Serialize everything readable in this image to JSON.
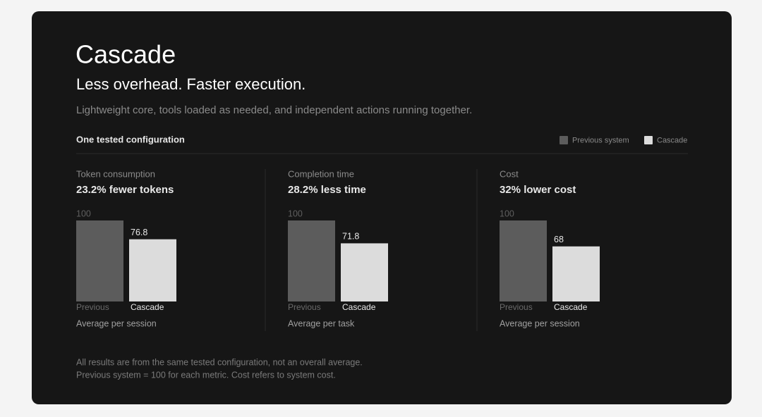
{
  "title": "Cascade",
  "subtitle": "Less overhead. Faster execution.",
  "description": "Lightweight core, tools loaded as needed, and independent actions running together.",
  "section_label": "One tested configuration",
  "legend": [
    {
      "name": "Previous system",
      "color": "#5c5c5c"
    },
    {
      "name": "Cascade",
      "color": "#dcdcdc"
    }
  ],
  "chart_data": [
    {
      "type": "bar",
      "title": "Token consumption",
      "subtitle": "23.2% fewer tokens",
      "categories": [
        "Previous",
        "Cascade"
      ],
      "values": [
        100,
        76.8
      ],
      "colors": [
        "#5c5c5c",
        "#dcdcdc"
      ],
      "ylim": [
        0,
        100
      ],
      "note": "Average per session"
    },
    {
      "type": "bar",
      "title": "Completion time",
      "subtitle": "28.2% less time",
      "categories": [
        "Previous",
        "Cascade"
      ],
      "values": [
        100,
        71.8
      ],
      "colors": [
        "#5c5c5c",
        "#dcdcdc"
      ],
      "ylim": [
        0,
        100
      ],
      "note": "Average per task"
    },
    {
      "type": "bar",
      "title": "Cost",
      "subtitle": "32% lower cost",
      "categories": [
        "Previous",
        "Cascade"
      ],
      "values": [
        100,
        68
      ],
      "colors": [
        "#5c5c5c",
        "#dcdcdc"
      ],
      "ylim": [
        0,
        100
      ],
      "note": "Average per session"
    }
  ],
  "footnote": [
    "All results are from the same tested configuration, not an overall average.",
    "Previous system = 100 for each metric. Cost refers to system cost."
  ]
}
